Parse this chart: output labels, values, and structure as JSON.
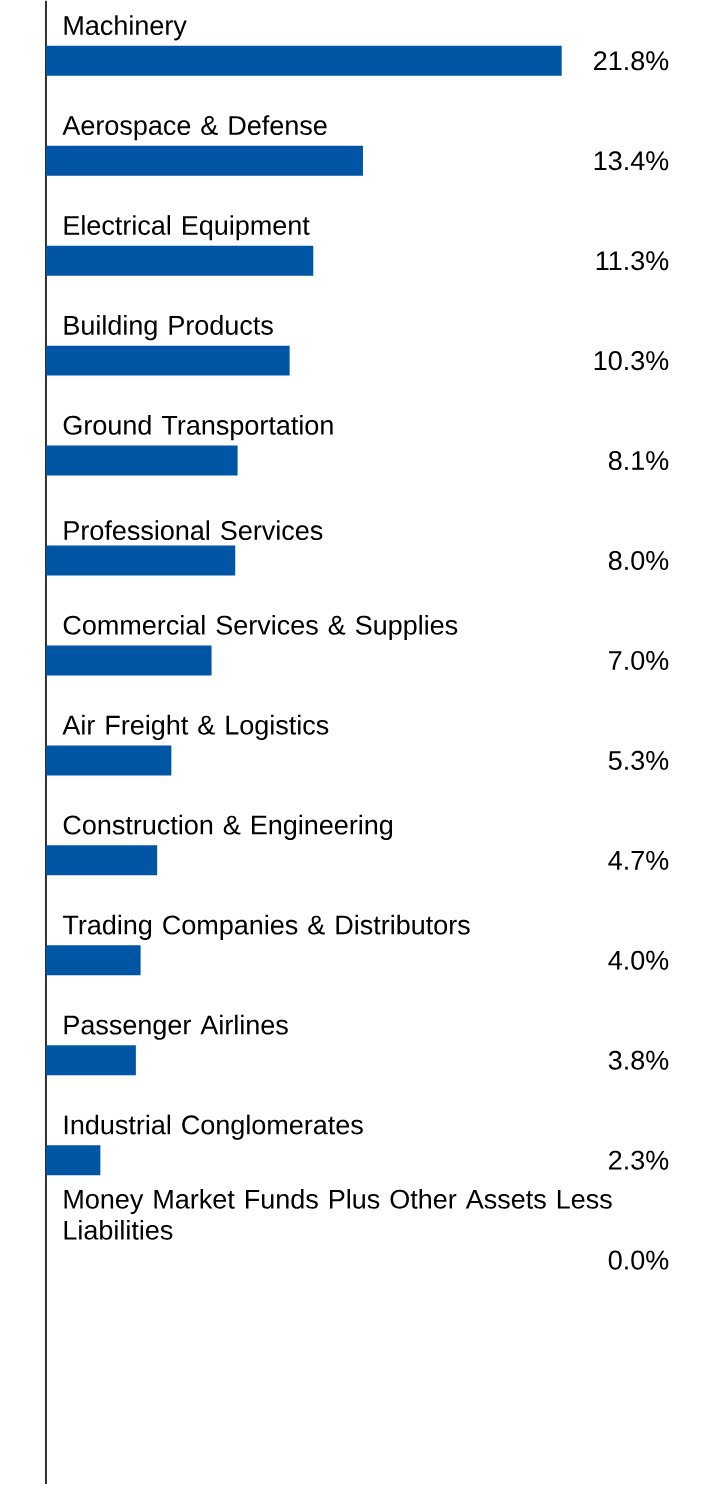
{
  "chart_data": {
    "type": "bar",
    "orientation": "horizontal",
    "color": "#0055a5",
    "categories": [
      "Machinery",
      "Aerospace & Defense",
      "Electrical Equipment",
      "Building Products",
      "Ground Transportation",
      "Professional Services",
      "Commercial Services & Supplies",
      "Air Freight & Logistics",
      "Construction & Engineering",
      "Trading Companies & Distributors",
      "Passenger Airlines",
      "Industrial Conglomerates",
      "Money Market Funds Plus Other Assets Less Liabilities"
    ],
    "values": [
      21.8,
      13.4,
      11.3,
      10.3,
      8.1,
      8.0,
      7.0,
      5.3,
      4.7,
      4.0,
      3.8,
      2.3,
      0.0
    ],
    "value_labels": [
      "21.8%",
      "13.4%",
      "11.3%",
      "10.3%",
      "8.1%",
      "8.0%",
      "7.0%",
      "5.3%",
      "4.7%",
      "4.0%",
      "3.8%",
      "2.3%",
      "0.0%"
    ]
  }
}
